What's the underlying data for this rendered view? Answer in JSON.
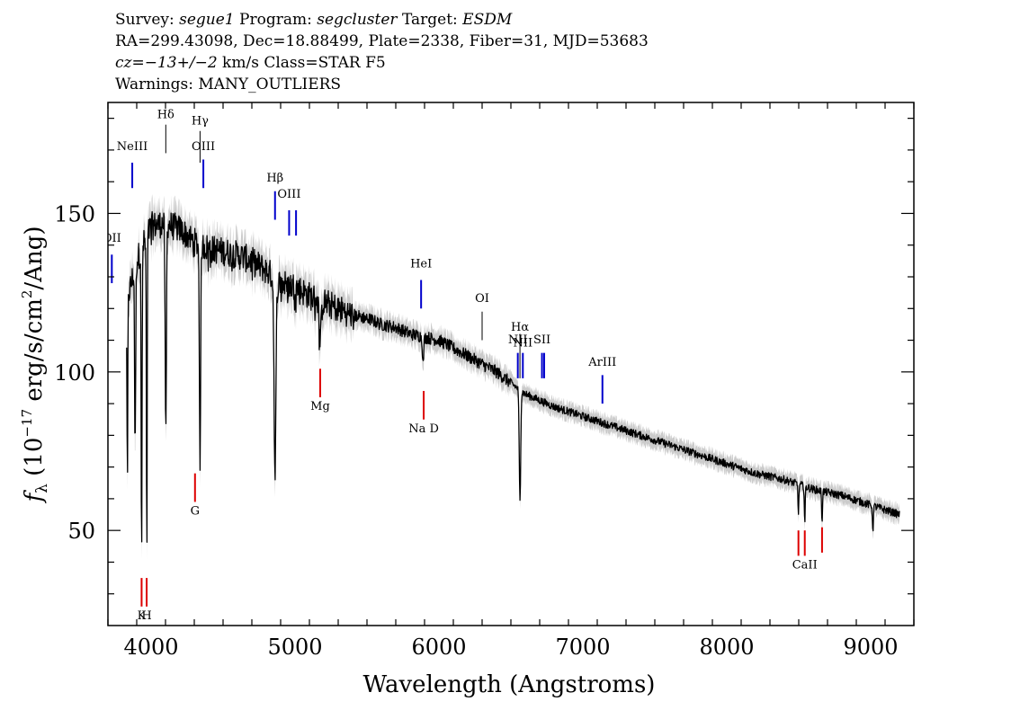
{
  "header": {
    "line1": {
      "survey_label": "Survey:",
      "survey": "segue1",
      "program_label": "Program:",
      "program": "segcluster",
      "target_label": "Target:",
      "target": "ESDM"
    },
    "line2": "RA=299.43098, Dec=18.88499, Plate=2338, Fiber=31, MJD=53683",
    "line3": {
      "cz": "cz=−13+/−2",
      "rest": " km/s Class=STAR F5"
    },
    "line4": "Warnings: MANY_OUTLIERS"
  },
  "colors": {
    "emission": "#0000cc",
    "absorption": "#dd0000",
    "spectrum": "#000000",
    "error": "#a0a0a0",
    "neutral": "#000000"
  },
  "chart_data": {
    "type": "line",
    "title": "",
    "xlabel": "Wavelength (Angstroms)",
    "ylabel": "fλ (10⁻¹⁷ erg/s/cm²/Ang)",
    "ylabel_parts": {
      "f": "f",
      "sub": "λ",
      "pre": " (10",
      "exp": "−17",
      "mid": " erg/s/cm",
      "exp2": "2",
      "post": "/Ang)"
    },
    "xlim": [
      3700,
      9300
    ],
    "ylim": [
      20,
      185
    ],
    "x_ticks": [
      4000,
      5000,
      6000,
      7000,
      8000,
      9000
    ],
    "y_ticks": [
      50,
      100,
      150
    ],
    "grid": false,
    "continuum": [
      [
        3830,
        122
      ],
      [
        3900,
        135
      ],
      [
        4000,
        146
      ],
      [
        4100,
        147
      ],
      [
        4200,
        145
      ],
      [
        4300,
        141
      ],
      [
        4400,
        139
      ],
      [
        4500,
        138
      ],
      [
        4600,
        137
      ],
      [
        4700,
        135
      ],
      [
        4800,
        132
      ],
      [
        4900,
        128
      ],
      [
        5000,
        127
      ],
      [
        5100,
        124
      ],
      [
        5200,
        122
      ],
      [
        5300,
        120
      ],
      [
        5400,
        118
      ],
      [
        5500,
        117
      ],
      [
        5600,
        115
      ],
      [
        5700,
        114
      ],
      [
        5800,
        112
      ],
      [
        5900,
        111
      ],
      [
        6000,
        110
      ],
      [
        6200,
        105
      ],
      [
        6400,
        100
      ],
      [
        6600,
        93
      ],
      [
        6800,
        89
      ],
      [
        7000,
        86
      ],
      [
        7200,
        83
      ],
      [
        7400,
        80
      ],
      [
        7600,
        77
      ],
      [
        7800,
        74
      ],
      [
        8000,
        71
      ],
      [
        8200,
        68
      ],
      [
        8400,
        66
      ],
      [
        8600,
        63
      ],
      [
        8800,
        61
      ],
      [
        9000,
        58
      ],
      [
        9200,
        55
      ]
    ],
    "absorption_features": [
      [
        3835,
        63,
        4
      ],
      [
        3889,
        75,
        5
      ],
      [
        3934,
        37,
        4
      ],
      [
        3970,
        40,
        4
      ],
      [
        4102,
        79,
        6
      ],
      [
        4340,
        73,
        6
      ],
      [
        4861,
        66,
        9
      ],
      [
        5175,
        110,
        10
      ],
      [
        5890,
        102,
        6
      ],
      [
        6563,
        59,
        7
      ],
      [
        8498,
        55,
        4
      ],
      [
        8542,
        52,
        4
      ],
      [
        8662,
        53,
        4
      ],
      [
        9015,
        49,
        4
      ]
    ],
    "lines": [
      {
        "label": "NeIII",
        "wavelength": 3869,
        "y_bottom": 158,
        "y_top": 166,
        "kind": "emission",
        "label_y": 170
      },
      {
        "label": "OII",
        "wavelength": 3727,
        "y_bottom": 128,
        "y_top": 137,
        "kind": "emission",
        "label_y": 141
      },
      {
        "label": "Hδ",
        "wavelength": 4102,
        "y_bottom": 169,
        "y_top": 178,
        "kind": "neutral",
        "label_y": 180
      },
      {
        "label": "Hγ",
        "wavelength": 4340,
        "y_bottom": 166,
        "y_top": 176,
        "kind": "neutral",
        "label_y": 178
      },
      {
        "label": "OIII",
        "wavelength": 4363,
        "y_bottom": 158,
        "y_top": 167,
        "kind": "emission",
        "label_y": 170
      },
      {
        "label": "Hβ",
        "wavelength": 4861,
        "y_bottom": 148,
        "y_top": 157,
        "kind": "emission",
        "label_y": 160
      },
      {
        "label": "OIII",
        "wavelength": 4959,
        "y_bottom": 143,
        "y_top": 151,
        "kind": "emission",
        "label_y": 155
      },
      {
        "label": "",
        "wavelength": 5007,
        "y_bottom": 143,
        "y_top": 151,
        "kind": "emission",
        "label_y": 0
      },
      {
        "label": "HeI",
        "wavelength": 5876,
        "y_bottom": 120,
        "y_top": 129,
        "kind": "emission",
        "label_y": 133
      },
      {
        "label": "OI",
        "wavelength": 6300,
        "y_bottom": 110,
        "y_top": 119,
        "kind": "neutral",
        "label_y": 122
      },
      {
        "label": "NII",
        "wavelength": 6548,
        "y_bottom": 98,
        "y_top": 106,
        "kind": "emission",
        "label_y": 109
      },
      {
        "label": "Hα",
        "wavelength": 6563,
        "y_bottom": 98,
        "y_top": 112,
        "kind": "neutral",
        "label_y": 113
      },
      {
        "label": "NII",
        "wavelength": 6583,
        "y_bottom": 98,
        "y_top": 106,
        "kind": "emission",
        "label_y": 108
      },
      {
        "label": "SII",
        "wavelength": 6716,
        "y_bottom": 98,
        "y_top": 106,
        "kind": "emission",
        "label_y": 109
      },
      {
        "label": "",
        "wavelength": 6731,
        "y_bottom": 98,
        "y_top": 106,
        "kind": "emission",
        "label_y": 0
      },
      {
        "label": "ArIII",
        "wavelength": 7136,
        "y_bottom": 90,
        "y_top": 99,
        "kind": "emission",
        "label_y": 102
      },
      {
        "label": "Mg",
        "wavelength": 5175,
        "y_bottom": 92,
        "y_top": 101,
        "kind": "absorption",
        "label_y": 88
      },
      {
        "label": "Na D",
        "wavelength": 5894,
        "y_bottom": 85,
        "y_top": 94,
        "kind": "absorption",
        "label_y": 81
      },
      {
        "label": "G",
        "wavelength": 4305,
        "y_bottom": 59,
        "y_top": 68,
        "kind": "absorption",
        "label_y": 55
      },
      {
        "label": "K",
        "wavelength": 3934,
        "y_bottom": 26,
        "y_top": 35,
        "kind": "absorption",
        "label_y": 22
      },
      {
        "label": "H",
        "wavelength": 3969,
        "y_bottom": 26,
        "y_top": 35,
        "kind": "absorption",
        "label_y": 22
      },
      {
        "label": "CaII",
        "wavelength": 8542,
        "y_bottom": 42,
        "y_top": 50,
        "kind": "absorption",
        "label_y": 38
      },
      {
        "label": "",
        "wavelength": 8498,
        "y_bottom": 42,
        "y_top": 50,
        "kind": "absorption",
        "label_y": 0
      },
      {
        "label": "",
        "wavelength": 8662,
        "y_bottom": 43,
        "y_top": 51,
        "kind": "absorption",
        "label_y": 0
      }
    ]
  }
}
